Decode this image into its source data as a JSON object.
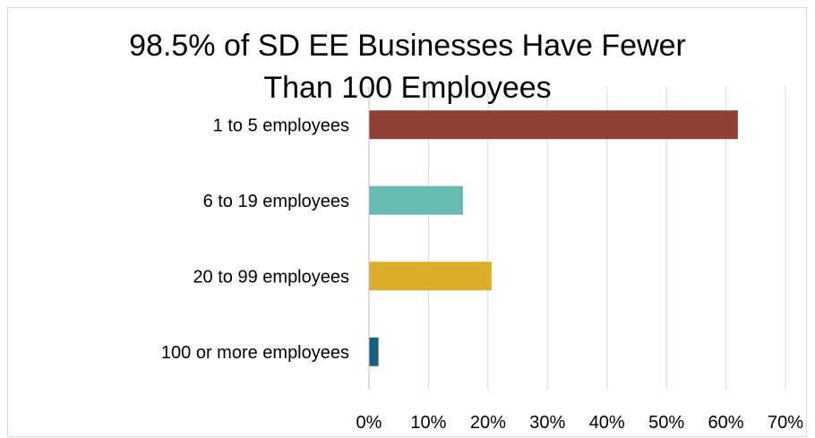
{
  "chart_data": {
    "type": "bar",
    "orientation": "horizontal",
    "title_lines": [
      "98.5% of SD EE Businesses Have Fewer",
      "Than 100 Employees"
    ],
    "categories": [
      "1 to 5 employees",
      "6 to 19 employees",
      "20 to 99 employees",
      "100 or more employees"
    ],
    "values": [
      62.0,
      15.8,
      20.6,
      1.6
    ],
    "colors": [
      "#8f3f33",
      "#66bcb1",
      "#dbae2a",
      "#1b5e80"
    ],
    "xlim": [
      0,
      70
    ],
    "xticks": [
      "0%",
      "10%",
      "20%",
      "30%",
      "40%",
      "50%",
      "60%",
      "70%"
    ],
    "grid": true,
    "legend": "none"
  }
}
